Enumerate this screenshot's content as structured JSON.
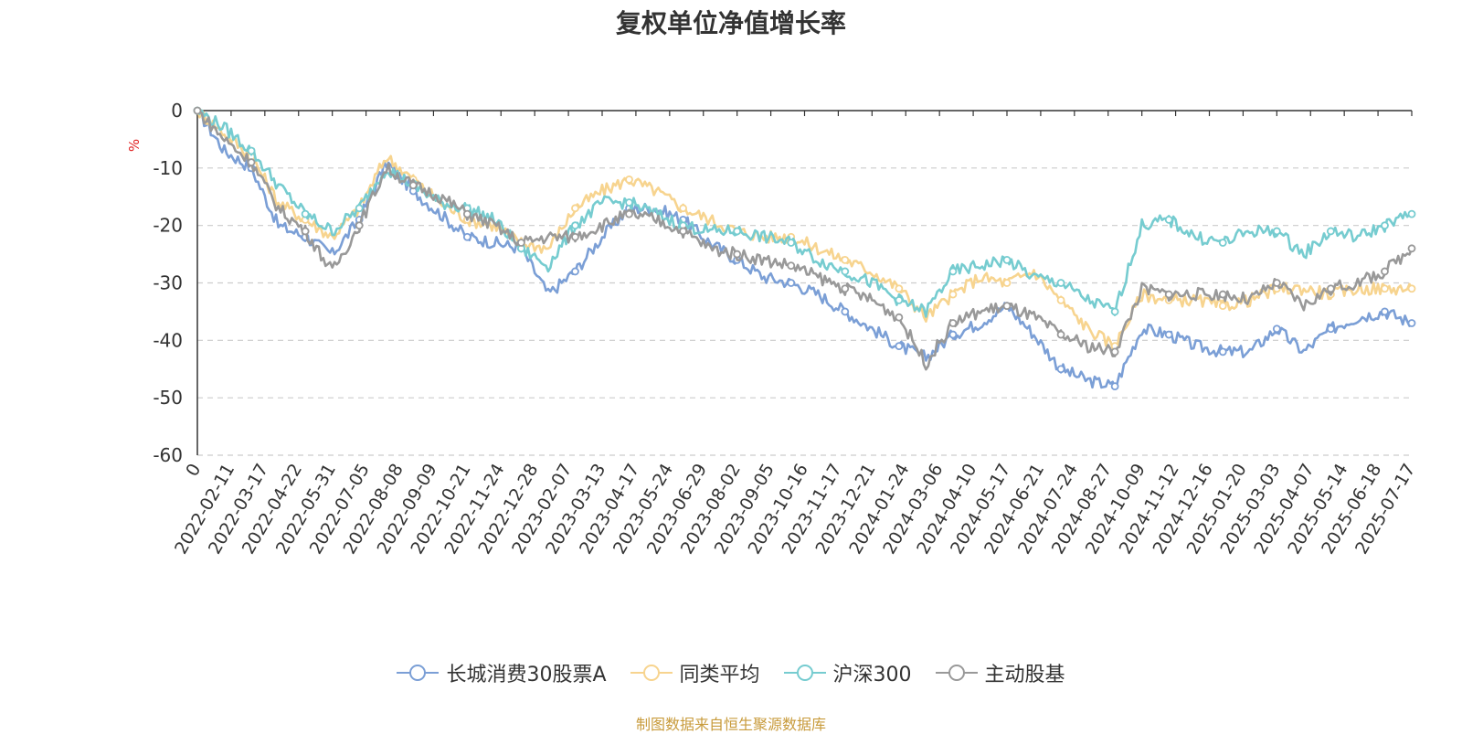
{
  "title": "复权单位净值增长率",
  "source": "制图数据来自恒生聚源数据库",
  "chart_data": {
    "type": "line",
    "title": "复权单位净值增长率",
    "ylabel": "%",
    "ylim": [
      -60,
      0
    ],
    "yticks": [
      0,
      -10,
      -20,
      -30,
      -40,
      -50,
      -60
    ],
    "grid": true,
    "legend_position": "bottom",
    "x_tick_labels": [
      "0",
      "2022-02-11",
      "2022-03-17",
      "2022-04-22",
      "2022-05-31",
      "2022-07-05",
      "2022-08-08",
      "2022-09-09",
      "2022-10-21",
      "2022-11-24",
      "2022-12-28",
      "2023-02-07",
      "2023-03-13",
      "2023-04-17",
      "2023-05-24",
      "2023-06-29",
      "2023-08-02",
      "2023-09-05",
      "2023-10-16",
      "2023-11-17",
      "2023-12-21",
      "2024-01-24",
      "2024-03-06",
      "2024-04-10",
      "2024-05-17",
      "2024-06-21",
      "2024-07-24",
      "2024-08-27",
      "2024-10-09",
      "2024-11-12",
      "2024-12-16",
      "2025-01-20",
      "2025-03-03",
      "2025-04-07",
      "2025-05-14",
      "2025-06-18",
      "2025-07-17"
    ],
    "series": [
      {
        "name": "长城消费30股票A",
        "color": "#7b9fd6",
        "values": [
          0,
          -7,
          -10,
          -20,
          -22,
          -25,
          -19,
          -9,
          -14,
          -18,
          -22,
          -23,
          -24,
          -32,
          -28,
          -22,
          -17,
          -17,
          -19,
          -23,
          -26,
          -29,
          -30,
          -32,
          -35,
          -38,
          -41,
          -43,
          -39,
          -37,
          -34,
          -39,
          -45,
          -47,
          -48,
          -38,
          -39,
          -41,
          -42,
          -42,
          -38,
          -42,
          -38,
          -36,
          -35,
          -37
        ]
      },
      {
        "name": "同类平均",
        "color": "#f7d48f",
        "values": [
          0,
          -4,
          -8,
          -16,
          -19,
          -22,
          -17,
          -8,
          -12,
          -16,
          -19,
          -20,
          -23,
          -24,
          -17,
          -14,
          -12,
          -14,
          -17,
          -19,
          -21,
          -22,
          -22,
          -24,
          -26,
          -28,
          -31,
          -36,
          -32,
          -29,
          -30,
          -28,
          -33,
          -38,
          -41,
          -32,
          -33,
          -33,
          -34,
          -33,
          -31,
          -31,
          -32,
          -31,
          -31,
          -31
        ]
      },
      {
        "name": "沪深300",
        "color": "#76ccd0",
        "values": [
          0,
          -3,
          -7,
          -13,
          -18,
          -21,
          -17,
          -10,
          -13,
          -16,
          -17,
          -19,
          -24,
          -27,
          -20,
          -16,
          -16,
          -18,
          -20,
          -21,
          -21,
          -22,
          -23,
          -26,
          -28,
          -30,
          -33,
          -35,
          -28,
          -27,
          -26,
          -29,
          -30,
          -33,
          -35,
          -20,
          -19,
          -22,
          -23,
          -21,
          -21,
          -25,
          -21,
          -22,
          -20,
          -18
        ]
      },
      {
        "name": "主动股基",
        "color": "#999999",
        "values": [
          0,
          -5,
          -9,
          -17,
          -21,
          -28,
          -20,
          -10,
          -13,
          -15,
          -18,
          -20,
          -23,
          -22,
          -22,
          -20,
          -18,
          -19,
          -21,
          -24,
          -25,
          -26,
          -27,
          -29,
          -31,
          -33,
          -36,
          -44,
          -37,
          -35,
          -34,
          -36,
          -39,
          -41,
          -42,
          -31,
          -32,
          -32,
          -32,
          -33,
          -30,
          -34,
          -31,
          -30,
          -28,
          -24
        ]
      }
    ]
  }
}
